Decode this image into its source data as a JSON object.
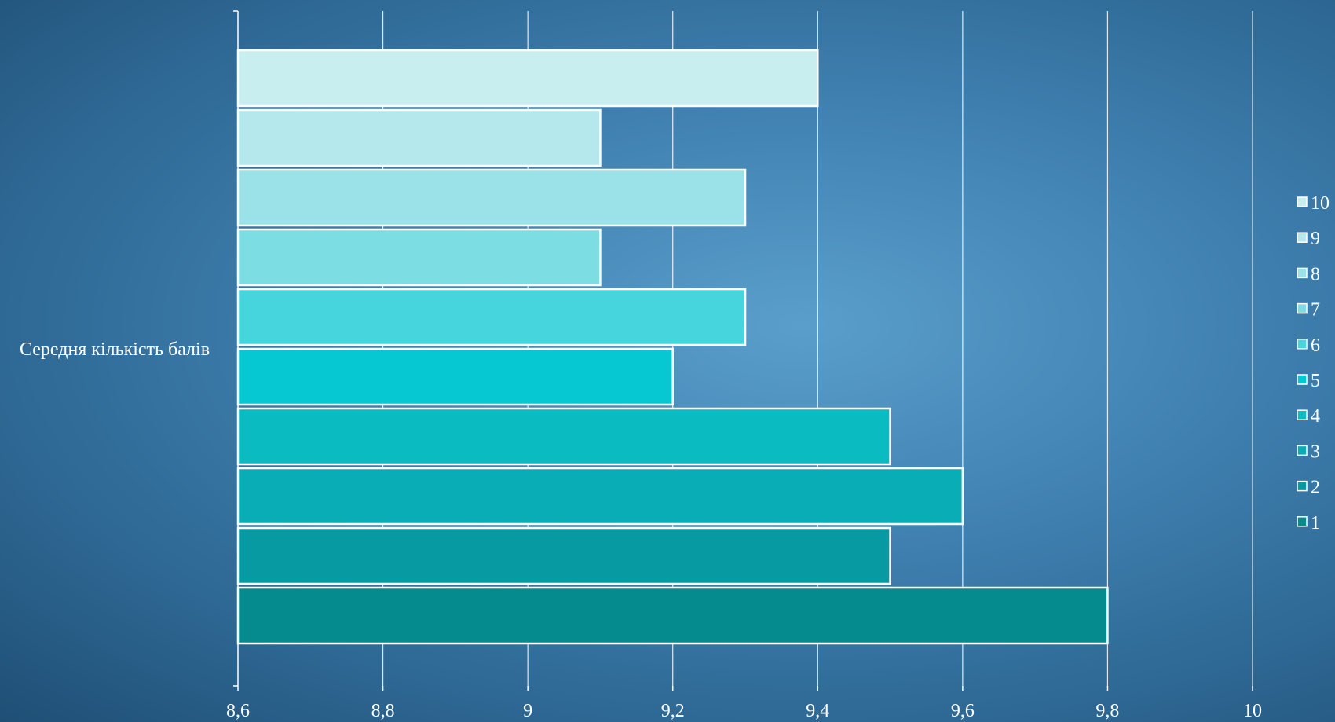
{
  "chart_data": {
    "type": "bar",
    "orientation": "horizontal",
    "categories": [
      "Середня кількість балів"
    ],
    "series": [
      {
        "name": "1",
        "values": [
          9.8
        ],
        "color": "#058a8e"
      },
      {
        "name": "2",
        "values": [
          9.5
        ],
        "color": "#079aa3"
      },
      {
        "name": "3",
        "values": [
          9.6
        ],
        "color": "#08adb6"
      },
      {
        "name": "4",
        "values": [
          9.5
        ],
        "color": "#0abbc2"
      },
      {
        "name": "5",
        "values": [
          9.2
        ],
        "color": "#05c8d2"
      },
      {
        "name": "6",
        "values": [
          9.3
        ],
        "color": "#47d5dd"
      },
      {
        "name": "7",
        "values": [
          9.1
        ],
        "color": "#7cdde2"
      },
      {
        "name": "8",
        "values": [
          9.3
        ],
        "color": "#9ae2e8"
      },
      {
        "name": "9",
        "values": [
          9.1
        ],
        "color": "#b5e8ed"
      },
      {
        "name": "10",
        "values": [
          9.4
        ],
        "color": "#c9eef0"
      }
    ],
    "xlim": [
      8.6,
      10
    ],
    "ticks": [
      "8,6",
      "8,8",
      "9",
      "9,2",
      "9,4",
      "9,6",
      "9,8",
      "10"
    ],
    "grid": true,
    "legend": "right"
  }
}
